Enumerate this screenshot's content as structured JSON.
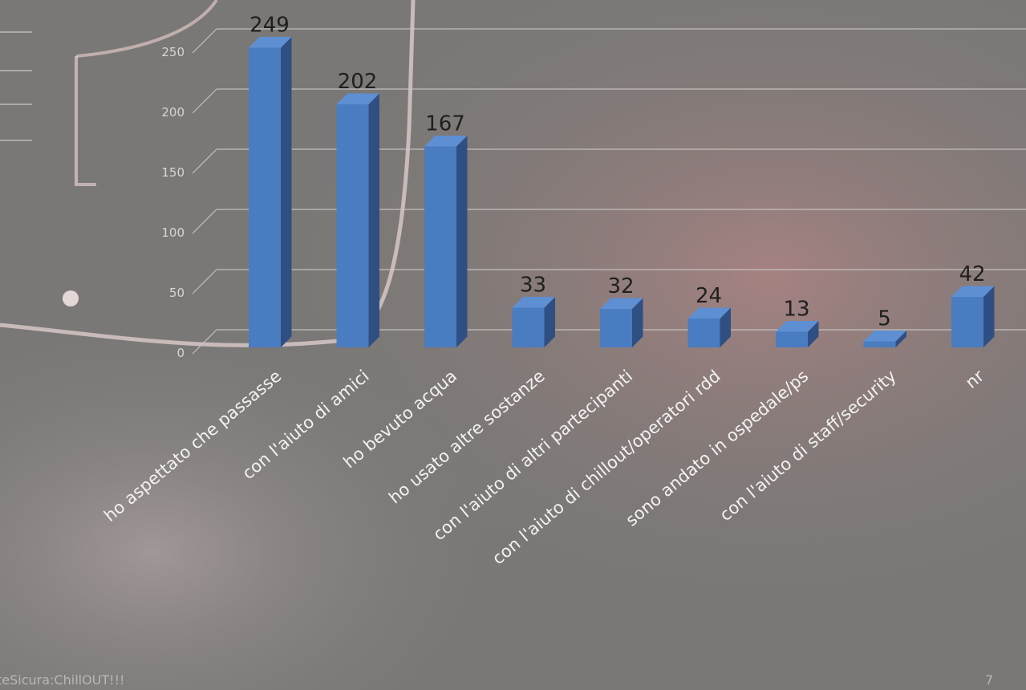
{
  "slide": {
    "footer_text": "teSicura:ChillOUT!!!",
    "page_number": "7"
  },
  "colors": {
    "bar_front": "#4a7cc1",
    "bar_side": "#2f4f82",
    "bar_top": "#5d8fd2",
    "gridline": "#c9c7c5",
    "tick_text": "#d8d6d4",
    "data_label": "#1f1f1f",
    "category_text": "#f2f2f2"
  },
  "chart_data": {
    "type": "bar",
    "title": "",
    "xlabel": "",
    "ylabel": "",
    "categories": [
      "ho aspettato che passasse",
      "con l'aiuto di amici",
      "ho bevuto acqua",
      "ho usato altre sostanze",
      "con l'aiuto di altri partecipanti",
      "con l'aiuto di chillout/operatori rdd",
      "sono andato in ospedale/ps",
      "con l'aiuto di staff/security",
      "nr"
    ],
    "values": [
      249,
      202,
      167,
      33,
      32,
      24,
      13,
      5,
      42
    ],
    "ylim": [
      0,
      250
    ],
    "yticks": [
      "0",
      "50",
      "100",
      "150",
      "200",
      "250"
    ],
    "grid": true,
    "legend": "none",
    "style": "3d-column"
  }
}
